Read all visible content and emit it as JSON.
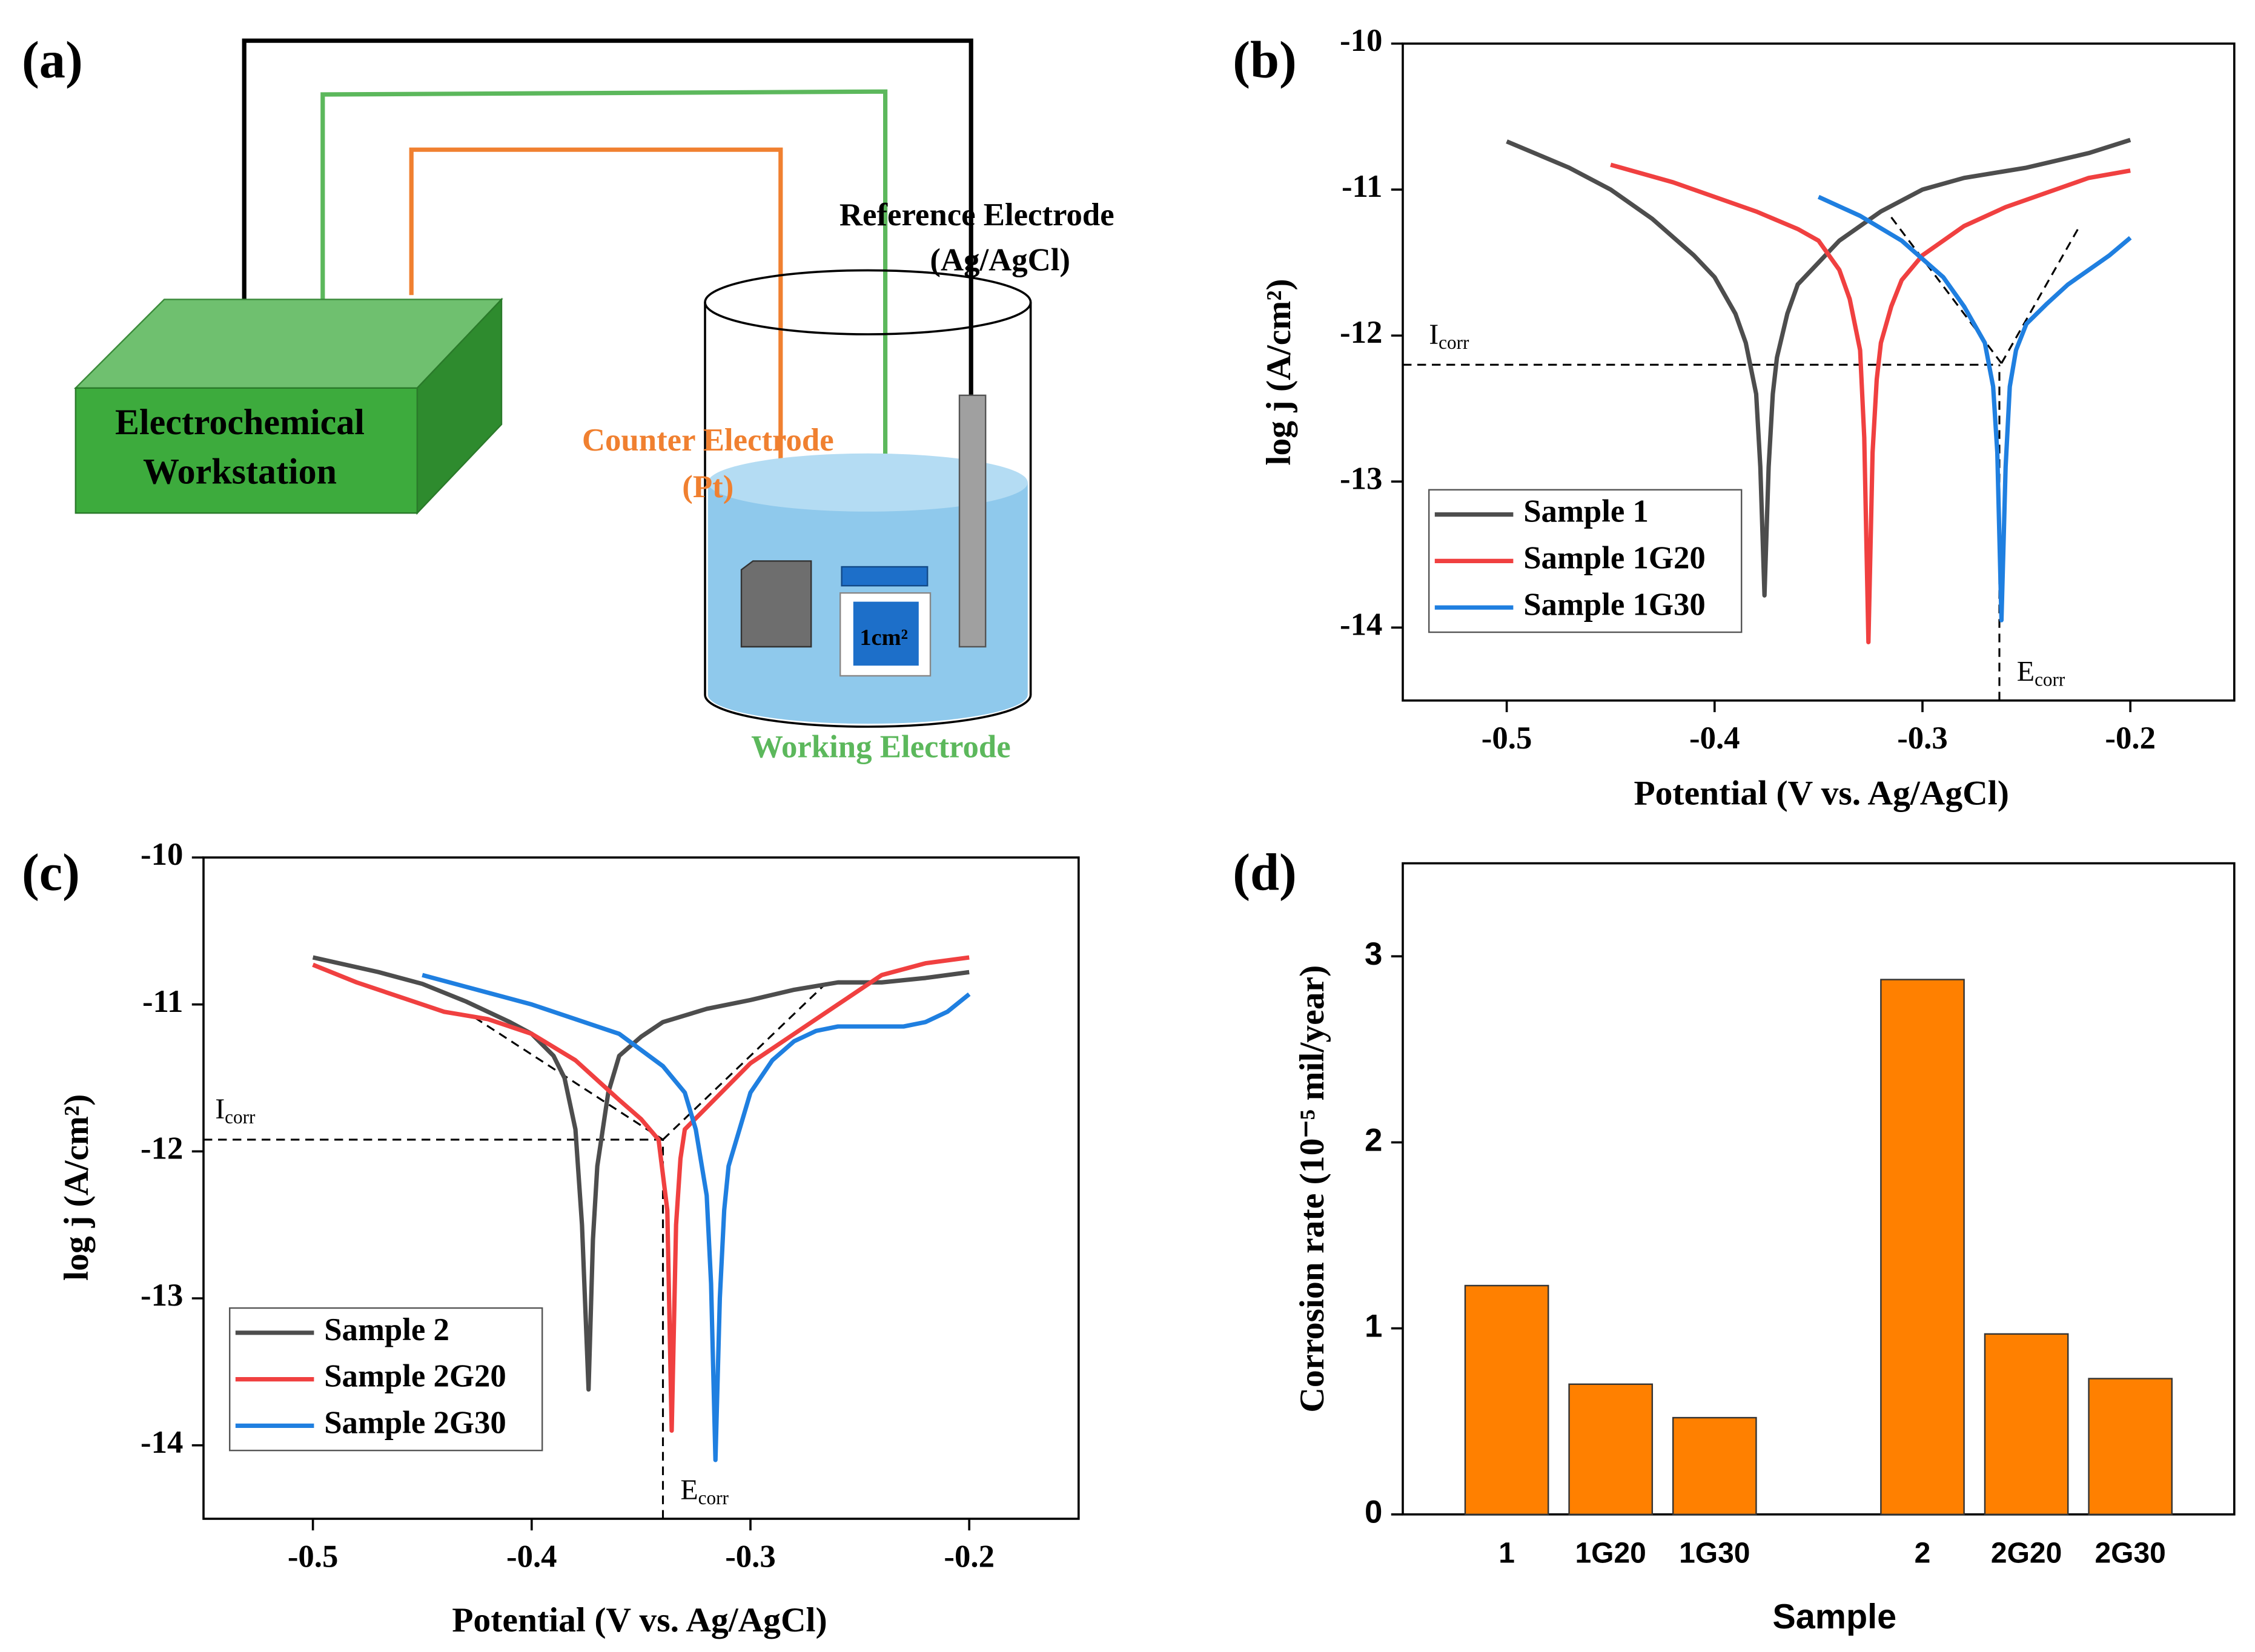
{
  "diagram": {
    "label": "(a)",
    "workstation": [
      "Electrochemical",
      "Workstation"
    ],
    "reference": [
      "Reference Electrode",
      "(Ag/AgCl)"
    ],
    "counter": [
      "Counter Electrode",
      "(Pt)"
    ],
    "working": "Working Electrode",
    "area": "1cm²"
  },
  "chart_data": [
    {
      "type": "line",
      "label": "(b)",
      "xlabel": "Potential (V vs. Ag/AgCl)",
      "ylabel": "log j (A/cm²)",
      "xlim": [
        -0.55,
        -0.15
      ],
      "xticks": [
        -0.5,
        -0.4,
        -0.3,
        -0.2
      ],
      "ylim": [
        -14.5,
        -10
      ],
      "yticks": [
        -14,
        -13,
        -12,
        -11,
        -10
      ],
      "legend": "lower left",
      "series": [
        {
          "name": "Sample 1",
          "color": "#4d4d4d",
          "x": [
            -0.5,
            -0.47,
            -0.45,
            -0.43,
            -0.41,
            -0.4,
            -0.39,
            -0.385,
            -0.38,
            -0.378,
            -0.376,
            -0.374,
            -0.372,
            -0.37,
            -0.365,
            -0.36,
            -0.35,
            -0.34,
            -0.32,
            -0.3,
            -0.28,
            -0.25,
            -0.22,
            -0.2
          ],
          "values": [
            -10.67,
            -10.85,
            -11.0,
            -11.2,
            -11.45,
            -11.6,
            -11.85,
            -12.05,
            -12.4,
            -12.9,
            -13.78,
            -12.9,
            -12.4,
            -12.15,
            -11.85,
            -11.65,
            -11.5,
            -11.35,
            -11.15,
            -11.0,
            -10.92,
            -10.85,
            -10.75,
            -10.66
          ]
        },
        {
          "name": "Sample 1G20",
          "color": "#f04040",
          "x": [
            -0.45,
            -0.42,
            -0.4,
            -0.38,
            -0.36,
            -0.35,
            -0.34,
            -0.335,
            -0.33,
            -0.328,
            -0.326,
            -0.324,
            -0.322,
            -0.32,
            -0.315,
            -0.31,
            -0.3,
            -0.28,
            -0.26,
            -0.24,
            -0.22,
            -0.2
          ],
          "values": [
            -10.83,
            -10.95,
            -11.05,
            -11.15,
            -11.27,
            -11.35,
            -11.55,
            -11.75,
            -12.1,
            -12.7,
            -14.1,
            -12.8,
            -12.3,
            -12.05,
            -11.8,
            -11.62,
            -11.45,
            -11.25,
            -11.12,
            -11.02,
            -10.92,
            -10.87
          ]
        },
        {
          "name": "Sample 1G30",
          "color": "#1f7fe0",
          "x": [
            -0.35,
            -0.33,
            -0.31,
            -0.29,
            -0.28,
            -0.27,
            -0.266,
            -0.264,
            -0.262,
            -0.26,
            -0.258,
            -0.255,
            -0.25,
            -0.24,
            -0.23,
            -0.22,
            -0.21,
            -0.2
          ],
          "values": [
            -11.05,
            -11.18,
            -11.35,
            -11.6,
            -11.8,
            -12.05,
            -12.35,
            -12.8,
            -13.95,
            -12.9,
            -12.35,
            -12.1,
            -11.92,
            -11.78,
            -11.65,
            -11.55,
            -11.45,
            -11.33
          ]
        }
      ],
      "corrosion": {
        "icorr": -12.2,
        "ecorr": -0.263,
        "icorr_label": "I",
        "ecorr_label": "E",
        "subscript": "corr"
      },
      "tangents": [
        {
          "x": [
            -0.315,
            -0.262
          ],
          "y": [
            -11.19,
            -12.19
          ]
        },
        {
          "x": [
            -0.262,
            -0.224
          ],
          "y": [
            -12.19,
            -11.24
          ]
        }
      ]
    },
    {
      "type": "line",
      "label": "(c)",
      "xlabel": "Potential (V vs. Ag/AgCl)",
      "ylabel": "log j (A/cm²)",
      "xlim": [
        -0.55,
        -0.15
      ],
      "xticks": [
        -0.5,
        -0.4,
        -0.3,
        -0.2
      ],
      "ylim": [
        -14.5,
        -10
      ],
      "yticks": [
        -14,
        -13,
        -12,
        -11,
        -10
      ],
      "legend": "lower left",
      "series": [
        {
          "name": "Sample 2",
          "color": "#4d4d4d",
          "x": [
            -0.5,
            -0.47,
            -0.45,
            -0.43,
            -0.41,
            -0.4,
            -0.39,
            -0.385,
            -0.38,
            -0.377,
            -0.374,
            -0.372,
            -0.37,
            -0.365,
            -0.36,
            -0.35,
            -0.34,
            -0.32,
            -0.3,
            -0.28,
            -0.26,
            -0.24,
            -0.22,
            -0.2
          ],
          "values": [
            -10.68,
            -10.78,
            -10.86,
            -10.98,
            -11.12,
            -11.2,
            -11.35,
            -11.5,
            -11.85,
            -12.5,
            -13.62,
            -12.6,
            -12.1,
            -11.6,
            -11.35,
            -11.22,
            -11.12,
            -11.03,
            -10.97,
            -10.9,
            -10.85,
            -10.85,
            -10.82,
            -10.78
          ]
        },
        {
          "name": "Sample 2G20",
          "color": "#f04040",
          "x": [
            -0.5,
            -0.48,
            -0.46,
            -0.44,
            -0.42,
            -0.4,
            -0.38,
            -0.36,
            -0.35,
            -0.342,
            -0.338,
            -0.336,
            -0.334,
            -0.332,
            -0.33,
            -0.32,
            -0.31,
            -0.3,
            -0.28,
            -0.26,
            -0.25,
            -0.24,
            -0.22,
            -0.2
          ],
          "values": [
            -10.73,
            -10.85,
            -10.95,
            -11.05,
            -11.1,
            -11.2,
            -11.38,
            -11.65,
            -11.78,
            -11.92,
            -12.4,
            -13.9,
            -12.5,
            -12.05,
            -11.85,
            -11.7,
            -11.55,
            -11.4,
            -11.2,
            -11.0,
            -10.9,
            -10.8,
            -10.72,
            -10.68
          ]
        },
        {
          "name": "Sample 2G30",
          "color": "#1f7fe0",
          "x": [
            -0.45,
            -0.42,
            -0.4,
            -0.38,
            -0.36,
            -0.34,
            -0.33,
            -0.325,
            -0.32,
            -0.318,
            -0.316,
            -0.314,
            -0.312,
            -0.31,
            -0.305,
            -0.3,
            -0.29,
            -0.28,
            -0.27,
            -0.26,
            -0.25,
            -0.24,
            -0.23,
            -0.22,
            -0.21,
            -0.2
          ],
          "values": [
            -10.8,
            -10.92,
            -11.0,
            -11.1,
            -11.2,
            -11.42,
            -11.6,
            -11.85,
            -12.3,
            -12.9,
            -14.1,
            -13.0,
            -12.4,
            -12.1,
            -11.85,
            -11.6,
            -11.38,
            -11.25,
            -11.18,
            -11.15,
            -11.15,
            -11.15,
            -11.15,
            -11.12,
            -11.05,
            -10.93
          ]
        }
      ],
      "corrosion": {
        "icorr": -11.92,
        "ecorr": -0.34,
        "icorr_label": "I",
        "ecorr_label": "E",
        "subscript": "corr"
      },
      "tangents": [
        {
          "x": [
            -0.426,
            -0.34
          ],
          "y": [
            -11.09,
            -11.92
          ]
        },
        {
          "x": [
            -0.34,
            -0.265
          ],
          "y": [
            -11.92,
            -10.85
          ]
        }
      ]
    },
    {
      "type": "bar",
      "label": "(d)",
      "xlabel": "Sample",
      "ylabel": "Corrosion rate (10⁻⁵ mil/year)",
      "categories": [
        "1",
        "1G20",
        "1G30",
        null,
        "2",
        "2G20",
        "2G30"
      ],
      "values": [
        1.23,
        0.7,
        0.52,
        null,
        2.875,
        0.97,
        0.73
      ],
      "color": "#ff8000",
      "ylim": [
        0,
        3.5
      ],
      "yticks": [
        0,
        1,
        2,
        3
      ]
    }
  ]
}
